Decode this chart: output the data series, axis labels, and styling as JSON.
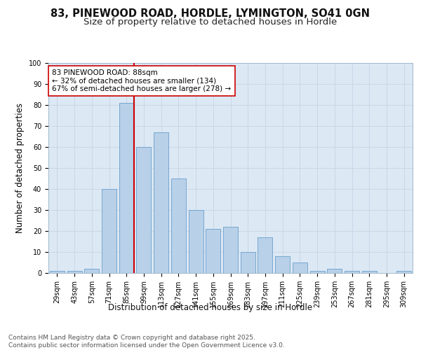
{
  "title1": "83, PINEWOOD ROAD, HORDLE, LYMINGTON, SO41 0GN",
  "title2": "Size of property relative to detached houses in Hordle",
  "xlabel": "Distribution of detached houses by size in Hordle",
  "ylabel": "Number of detached properties",
  "bar_labels": [
    "29sqm",
    "43sqm",
    "57sqm",
    "71sqm",
    "85sqm",
    "99sqm",
    "113sqm",
    "127sqm",
    "141sqm",
    "155sqm",
    "169sqm",
    "183sqm",
    "197sqm",
    "211sqm",
    "225sqm",
    "239sqm",
    "253sqm",
    "267sqm",
    "281sqm",
    "295sqm",
    "309sqm"
  ],
  "bar_values": [
    1,
    1,
    2,
    40,
    81,
    60,
    67,
    45,
    30,
    21,
    22,
    10,
    17,
    8,
    5,
    1,
    2,
    1,
    1,
    0,
    1
  ],
  "bar_color": "#b8d0e8",
  "bar_edgecolor": "#6aa0cc",
  "vline_color": "#cc0000",
  "annotation_text": "83 PINEWOOD ROAD: 88sqm\n← 32% of detached houses are smaller (134)\n67% of semi-detached houses are larger (278) →",
  "annotation_box_color": "#ffffff",
  "annotation_box_edgecolor": "#cc0000",
  "ylim": [
    0,
    100
  ],
  "yticks": [
    0,
    10,
    20,
    30,
    40,
    50,
    60,
    70,
    80,
    90,
    100
  ],
  "grid_color": "#c8d8e8",
  "background_color": "#dce8f4",
  "fig_background": "#ffffff",
  "footer_text": "Contains HM Land Registry data © Crown copyright and database right 2025.\nContains public sector information licensed under the Open Government Licence v3.0.",
  "title_fontsize": 10.5,
  "subtitle_fontsize": 9.5,
  "axis_label_fontsize": 8.5,
  "tick_fontsize": 7,
  "annotation_fontsize": 7.5,
  "footer_fontsize": 6.5
}
